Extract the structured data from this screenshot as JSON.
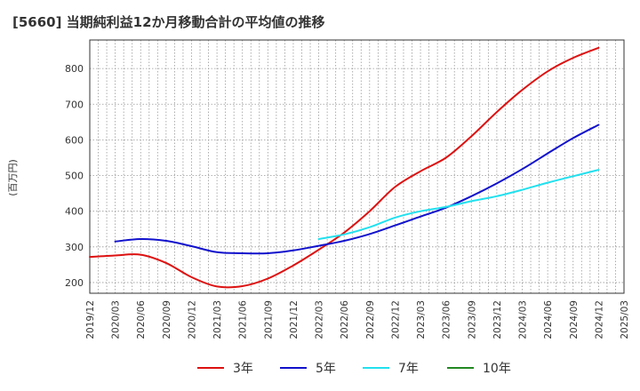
{
  "chart_data": {
    "type": "line",
    "title": "[5660]  当期純利益12か月移動合計の平均値の推移",
    "ylabel": "(百万円)",
    "xlabel": "",
    "ylim": [
      170,
      880
    ],
    "yticks": [
      200,
      300,
      400,
      500,
      600,
      700,
      800
    ],
    "x_ticks": [
      "2019/12",
      "2020/03",
      "2020/06",
      "2020/09",
      "2020/12",
      "2021/03",
      "2021/06",
      "2021/09",
      "2021/12",
      "2022/03",
      "2022/06",
      "2022/09",
      "2022/12",
      "2023/03",
      "2023/06",
      "2023/09",
      "2023/12",
      "2024/03",
      "2024/06",
      "2024/09",
      "2024/12",
      "2025/03"
    ],
    "grid": true,
    "legend_position": "bottom",
    "series": [
      {
        "name": "3年",
        "color": "#dd1111",
        "x": [
          "2019/12",
          "2020/03",
          "2020/06",
          "2020/09",
          "2020/12",
          "2021/03",
          "2021/06",
          "2021/09",
          "2021/12",
          "2022/03",
          "2022/06",
          "2022/09",
          "2022/12",
          "2023/03",
          "2023/06",
          "2023/09",
          "2023/12",
          "2024/03",
          "2024/06",
          "2024/09",
          "2024/12"
        ],
        "values": [
          272,
          276,
          278,
          255,
          215,
          189,
          190,
          211,
          248,
          292,
          340,
          400,
          468,
          512,
          550,
          610,
          678,
          740,
          792,
          830,
          858
        ]
      },
      {
        "name": "5年",
        "color": "#1111cc",
        "x": [
          "2020/03",
          "2020/06",
          "2020/09",
          "2020/12",
          "2021/03",
          "2021/06",
          "2021/09",
          "2021/12",
          "2022/03",
          "2022/06",
          "2022/09",
          "2022/12",
          "2023/03",
          "2023/06",
          "2023/09",
          "2023/12",
          "2024/03",
          "2024/06",
          "2024/09",
          "2024/12"
        ],
        "values": [
          315,
          322,
          317,
          302,
          285,
          282,
          282,
          290,
          303,
          317,
          336,
          360,
          385,
          410,
          442,
          478,
          518,
          562,
          605,
          642
        ]
      },
      {
        "name": "7年",
        "color": "#22e0ee",
        "x": [
          "2022/03",
          "2022/06",
          "2022/09",
          "2022/12",
          "2023/03",
          "2023/06",
          "2023/09",
          "2023/12",
          "2024/03",
          "2024/06",
          "2024/09",
          "2024/12"
        ],
        "values": [
          322,
          335,
          355,
          382,
          400,
          412,
          428,
          442,
          460,
          480,
          498,
          516
        ]
      },
      {
        "name": "10年",
        "color": "#228822",
        "x": [],
        "values": []
      }
    ]
  }
}
